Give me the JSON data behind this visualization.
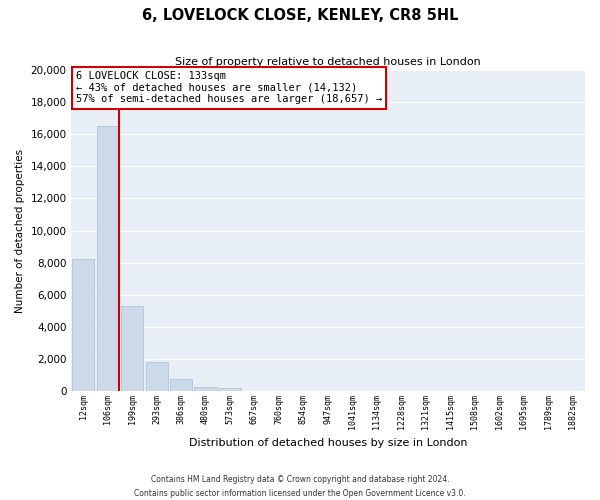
{
  "title": "6, LOVELOCK CLOSE, KENLEY, CR8 5HL",
  "subtitle": "Size of property relative to detached houses in London",
  "xlabel": "Distribution of detached houses by size in London",
  "ylabel": "Number of detached properties",
  "bar_labels": [
    "12sqm",
    "106sqm",
    "199sqm",
    "293sqm",
    "386sqm",
    "480sqm",
    "573sqm",
    "667sqm",
    "760sqm",
    "854sqm",
    "947sqm",
    "1041sqm",
    "1134sqm",
    "1228sqm",
    "1321sqm",
    "1415sqm",
    "1508sqm",
    "1602sqm",
    "1695sqm",
    "1789sqm",
    "1882sqm"
  ],
  "bar_heights": [
    8200,
    16500,
    5300,
    1800,
    750,
    300,
    200,
    0,
    0,
    0,
    0,
    0,
    0,
    0,
    0,
    0,
    0,
    0,
    0,
    0,
    0
  ],
  "bar_color": "#ccd9e8",
  "bar_edge_color": "#aabdd4",
  "annotation_title": "6 LOVELOCK CLOSE: 133sqm",
  "annotation_line1": "← 43% of detached houses are smaller (14,132)",
  "annotation_line2": "57% of semi-detached houses are larger (18,657) →",
  "annotation_box_color": "#ffffff",
  "annotation_box_edge": "#cc0000",
  "vline_color": "#cc0000",
  "ylim": [
    0,
    20000
  ],
  "yticks": [
    0,
    2000,
    4000,
    6000,
    8000,
    10000,
    12000,
    14000,
    16000,
    18000,
    20000
  ],
  "footer_line1": "Contains HM Land Registry data © Crown copyright and database right 2024.",
  "footer_line2": "Contains public sector information licensed under the Open Government Licence v3.0.",
  "background_color": "#ffffff",
  "plot_background": "#e8eef5",
  "grid_color": "#ffffff"
}
